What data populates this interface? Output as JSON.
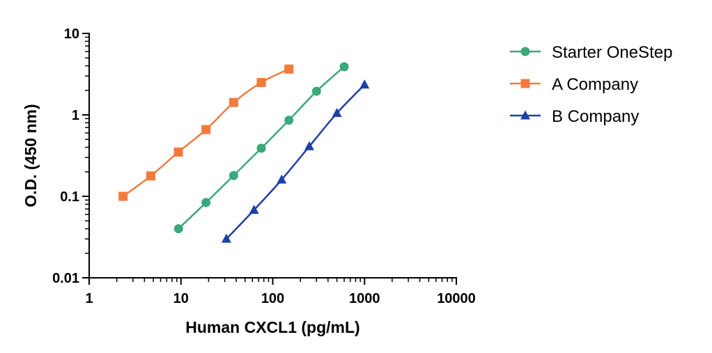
{
  "chart_data": {
    "type": "line",
    "x_scale": "log",
    "y_scale": "log",
    "xlim": [
      1,
      10000
    ],
    "ylim": [
      0.01,
      10
    ],
    "xlabel": "Human CXCL1 (pg/mL)",
    "ylabel": "O.D. (450 nm)",
    "x_ticks": [
      1,
      10,
      100,
      1000,
      10000
    ],
    "x_tick_labels": [
      "1",
      "10",
      "100",
      "1000",
      "10000"
    ],
    "y_ticks": [
      0.01,
      0.1,
      1,
      10
    ],
    "y_tick_labels": [
      "0.01",
      "0.1",
      "1",
      "10"
    ],
    "grid": false,
    "legend_position": "right",
    "series": [
      {
        "name": "Starter OneStep",
        "color": "#3aa87a",
        "marker": "circle",
        "x": [
          9.4,
          18.75,
          37.5,
          75,
          150,
          300,
          600
        ],
        "y": [
          0.04,
          0.084,
          0.18,
          0.39,
          0.86,
          1.95,
          3.9
        ]
      },
      {
        "name": "A Company",
        "color": "#f47a3c",
        "marker": "square",
        "x": [
          2.34,
          4.69,
          9.38,
          18.75,
          37.5,
          75,
          150
        ],
        "y": [
          0.1,
          0.178,
          0.35,
          0.66,
          1.42,
          2.5,
          3.65
        ]
      },
      {
        "name": "B Company",
        "color": "#1f3fa8",
        "marker": "triangle",
        "x": [
          31.25,
          62.5,
          125,
          250,
          500,
          1000
        ],
        "y": [
          0.03,
          0.068,
          0.16,
          0.41,
          1.05,
          2.35
        ]
      }
    ]
  }
}
